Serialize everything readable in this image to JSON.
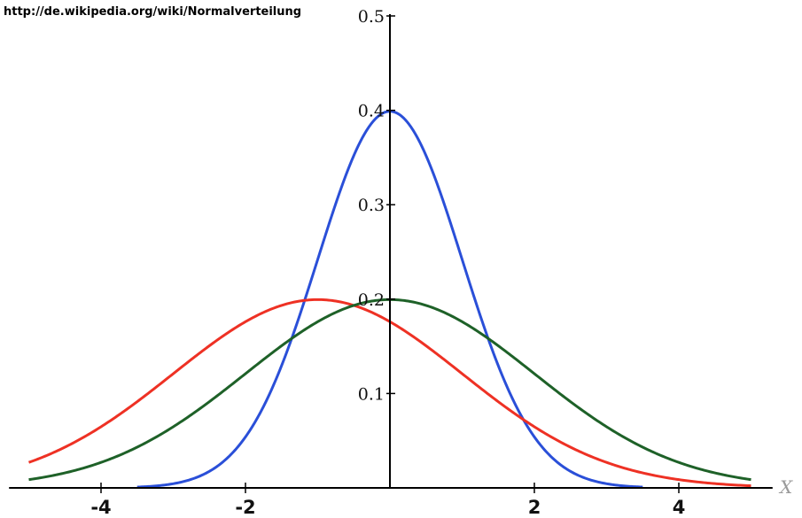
{
  "source_url": "http://de.wikipedia.org/wiki/Normalverteilung",
  "colors": {
    "axis": "#000000",
    "background": "#ffffff"
  },
  "chart_data": {
    "type": "line",
    "title": "",
    "xlabel": "X",
    "ylabel": "",
    "xlim": [
      -5.2,
      5.2
    ],
    "ylim": [
      0,
      0.5
    ],
    "grid": false,
    "x_ticks": [
      {
        "value": -4,
        "label": "-4"
      },
      {
        "value": -2,
        "label": "-2"
      },
      {
        "value": 2,
        "label": "2"
      },
      {
        "value": 4,
        "label": "4"
      }
    ],
    "y_ticks": [
      {
        "value": 0.1,
        "label": "0.1"
      },
      {
        "value": 0.2,
        "label": "0.2"
      },
      {
        "value": 0.3,
        "label": "0.3"
      },
      {
        "value": 0.4,
        "label": "0.4"
      },
      {
        "value": 0.5,
        "label": "0.5"
      }
    ],
    "series": [
      {
        "mean": 0,
        "sd": 1,
        "color": "#2a4fd8",
        "x_range": [
          -3.5,
          3.5
        ]
      },
      {
        "mean": -1,
        "sd": 2,
        "color": "#ee3124",
        "x_range": [
          -5,
          5
        ]
      },
      {
        "mean": 0,
        "sd": 2,
        "color": "#1e6128",
        "x_range": [
          -5,
          5
        ]
      }
    ]
  }
}
